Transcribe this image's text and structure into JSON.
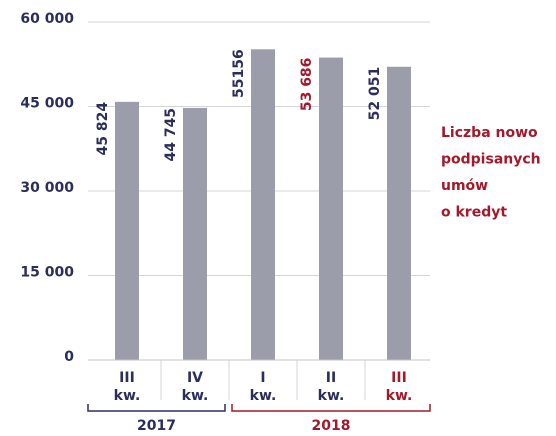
{
  "chart_data": {
    "type": "bar",
    "categories": [
      "III kw.",
      "IV kw.",
      "I kw.",
      "II kw.",
      "III kw."
    ],
    "values": [
      45824,
      44745,
      55156,
      53686,
      52051
    ],
    "value_labels": [
      "45 824",
      "44 745",
      "55156",
      "53 686",
      "52 051"
    ],
    "color": "#9b9dab",
    "text_color": "#2b2d5c",
    "highlight_color": "#a3192b",
    "highlight": 4,
    "ylim": [
      0,
      60000
    ],
    "yticks": [
      {
        "value": 0,
        "label": "0"
      },
      {
        "value": 15000,
        "label": "15 000"
      },
      {
        "value": 30000,
        "label": "30 000"
      },
      {
        "value": 45000,
        "label": "45 000"
      },
      {
        "value": 60000,
        "label": "60 000"
      }
    ],
    "grid": true,
    "groups": [
      {
        "label": "2017",
        "from": 0,
        "to": 1,
        "color": "#2b2d5c"
      },
      {
        "label": "2018",
        "from": 2,
        "to": 4,
        "color": "#a3192b"
      }
    ],
    "annotation": [
      "Liczba nowo",
      "podpisanych",
      "umów",
      "o kredyt"
    ]
  }
}
